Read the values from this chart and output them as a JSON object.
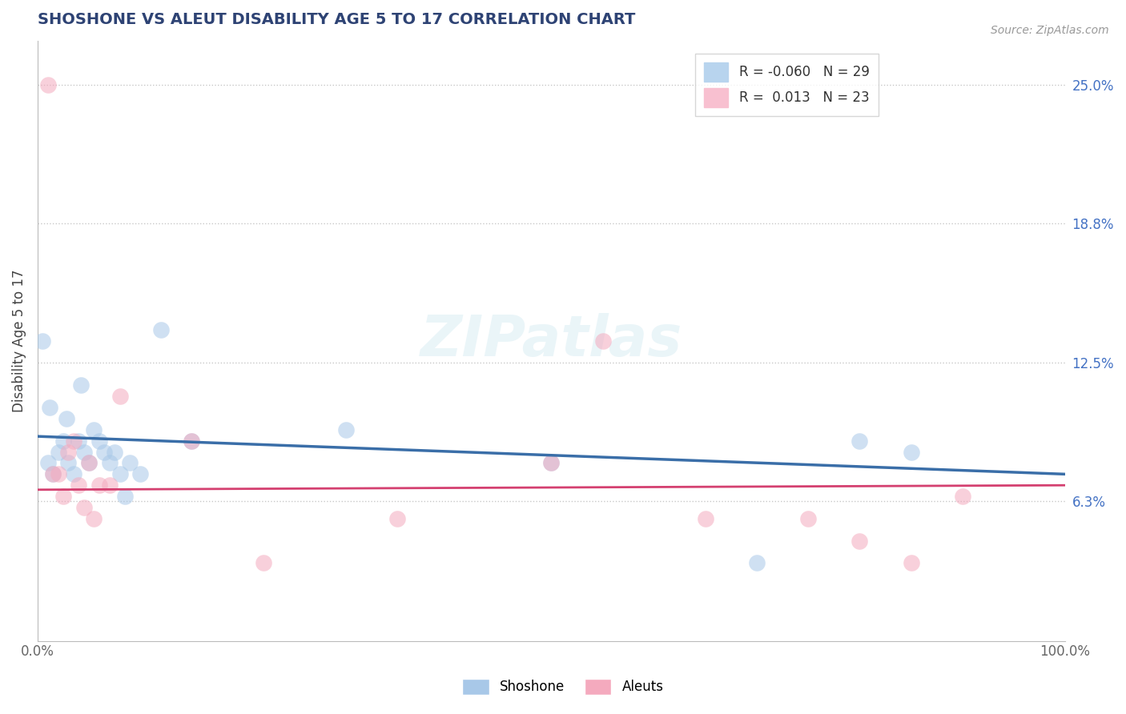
{
  "title": "SHOSHONE VS ALEUT DISABILITY AGE 5 TO 17 CORRELATION CHART",
  "source_text": "Source: ZipAtlas.com",
  "ylabel": "Disability Age 5 to 17",
  "xlim": [
    0,
    100
  ],
  "ylim": [
    0,
    27
  ],
  "x_tick_labels": [
    "0.0%",
    "100.0%"
  ],
  "x_tick_positions": [
    0,
    100
  ],
  "y_tick_labels_right": [
    "6.3%",
    "12.5%",
    "18.8%",
    "25.0%"
  ],
  "y_tick_positions_right": [
    6.3,
    12.5,
    18.8,
    25.0
  ],
  "shoshone_R": -0.06,
  "shoshone_N": 29,
  "aleut_R": 0.013,
  "aleut_N": 23,
  "blue_scatter_color": "#A8C8E8",
  "pink_scatter_color": "#F4AABE",
  "blue_line_color": "#3A6EA8",
  "pink_line_color": "#D44070",
  "title_color": "#2E4374",
  "source_color": "#999999",
  "background_color": "#ffffff",
  "grid_color": "#c8c8c8",
  "shoshone_x": [
    1.0,
    1.5,
    2.0,
    2.5,
    3.0,
    3.5,
    4.0,
    4.5,
    5.0,
    5.5,
    6.0,
    6.5,
    7.0,
    7.5,
    8.0,
    8.5,
    9.0,
    10.0,
    12.0,
    15.0,
    30.0,
    50.0,
    70.0,
    80.0,
    85.0,
    0.5,
    1.2,
    2.8,
    4.2
  ],
  "shoshone_y": [
    8.0,
    7.5,
    8.5,
    9.0,
    8.0,
    7.5,
    9.0,
    8.5,
    8.0,
    9.5,
    9.0,
    8.5,
    8.0,
    8.5,
    7.5,
    6.5,
    8.0,
    7.5,
    14.0,
    9.0,
    9.5,
    8.0,
    3.5,
    9.0,
    8.5,
    13.5,
    10.5,
    10.0,
    11.5
  ],
  "aleut_x": [
    1.0,
    2.0,
    3.0,
    4.0,
    5.0,
    6.0,
    8.0,
    15.0,
    22.0,
    35.0,
    50.0,
    55.0,
    65.0,
    75.0,
    80.0,
    85.0,
    90.0,
    2.5,
    3.5,
    5.5,
    7.0,
    1.5,
    4.5
  ],
  "aleut_y": [
    25.0,
    7.5,
    8.5,
    7.0,
    8.0,
    7.0,
    11.0,
    9.0,
    3.5,
    5.5,
    8.0,
    13.5,
    5.5,
    5.5,
    4.5,
    3.5,
    6.5,
    6.5,
    9.0,
    5.5,
    7.0,
    7.5,
    6.0
  ],
  "shoshone_line_x": [
    0,
    100
  ],
  "shoshone_line_y": [
    9.2,
    7.5
  ],
  "aleut_line_x": [
    0,
    100
  ],
  "aleut_line_y": [
    6.8,
    7.0
  ]
}
